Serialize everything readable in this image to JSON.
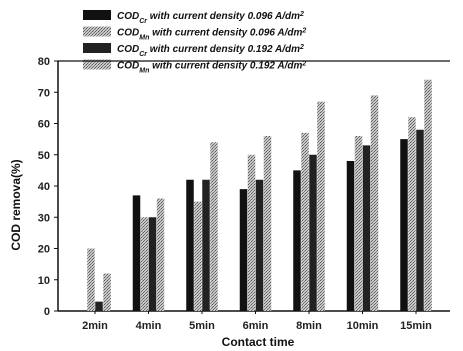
{
  "chart_data": {
    "type": "bar",
    "categories": [
      "2min",
      "4min",
      "5min",
      "6min",
      "8min",
      "10min",
      "15min"
    ],
    "series": [
      {
        "name": "CODCr with current density 0.096 A/dm2",
        "values": [
          0,
          37,
          42,
          39,
          45,
          48,
          55
        ],
        "color": "#111111",
        "pattern": "solid"
      },
      {
        "name": "CODMn with current density 0.096 A/dm2",
        "values": [
          20,
          30,
          35,
          50,
          57,
          56,
          62
        ],
        "color": "#9a9a9a",
        "pattern": "hatched"
      },
      {
        "name": "CODCr with current density 0.192 A/dm2",
        "values": [
          3,
          30,
          42,
          42,
          50,
          53,
          58
        ],
        "color": "#222222",
        "pattern": "solid"
      },
      {
        "name": "CODMn with current density 0.192 A/dm2",
        "values": [
          12,
          36,
          54,
          56,
          67,
          69,
          74
        ],
        "color": "#a8a8a8",
        "pattern": "hatched"
      }
    ],
    "legend": [
      {
        "base": "COD",
        "sub": "Cr",
        "text": " with current density  0.096 ",
        "unit": "A/dm",
        "sup": "2"
      },
      {
        "base": "COD",
        "sub": "Mn",
        "text": " with current density  0.096 ",
        "unit": "A/dm",
        "sup": "2"
      },
      {
        "base": "COD",
        "sub": "Cr",
        "text": " with current density  0.192 ",
        "unit": "A/dm",
        "sup": "2"
      },
      {
        "base": "COD",
        "sub": "Mn",
        "text": " with current density  0.192 ",
        "unit": "A/dm",
        "sup": "2"
      }
    ],
    "xlabel": "Contact time",
    "ylabel": "COD remova(%)",
    "ylim": [
      0,
      80
    ],
    "yticks": [
      "0",
      "10",
      "20",
      "30",
      "40",
      "50",
      "60",
      "70",
      "80"
    ],
    "legend_position": "top-left",
    "grid": false
  }
}
